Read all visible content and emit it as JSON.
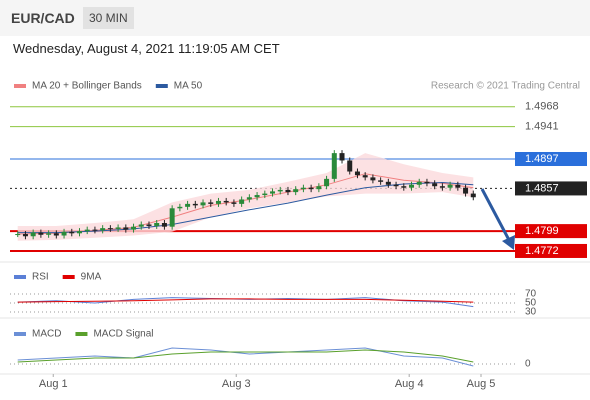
{
  "header": {
    "symbol": "EUR/CAD",
    "timeframe": "30 MIN",
    "datetime": "Wednesday, August 4, 2021 11:19:05 AM CET"
  },
  "attribution": "Research © 2021 Trading Central",
  "chart_data": [
    {
      "type": "candlestick",
      "up_color": "#2a8a3a",
      "down_color": "#222222",
      "values": [
        1.4795,
        1.4792,
        1.4797,
        1.4794,
        1.4796,
        1.4793,
        1.4798,
        1.4796,
        1.4799,
        1.4801,
        1.48,
        1.4803,
        1.4802,
        1.4804,
        1.4801,
        1.4805,
        1.4808,
        1.4806,
        1.481,
        1.4805,
        1.483,
        1.4832,
        1.4836,
        1.4834,
        1.4838,
        1.4836,
        1.484,
        1.4838,
        1.4836,
        1.4842,
        1.4845,
        1.4848,
        1.485,
        1.4853,
        1.4855,
        1.4852,
        1.4856,
        1.4858,
        1.4856,
        1.486,
        1.487,
        1.4905,
        1.4895,
        1.488,
        1.4875,
        1.4872,
        1.4868,
        1.4866,
        1.4862,
        1.486,
        1.4858,
        1.4862,
        1.4866,
        1.4864,
        1.486,
        1.4858,
        1.4862,
        1.4858,
        1.485,
        1.4845
      ],
      "series": [
        {
          "name": "MA 20 + Bollinger Bands",
          "color": "#f08080",
          "band_color": "#fbd9dc",
          "x": [
            0,
            5,
            10,
            15,
            20,
            25,
            30,
            35,
            40,
            45,
            50,
            55,
            59
          ],
          "values": [
            1.4795,
            1.4796,
            1.48,
            1.4804,
            1.4818,
            1.4834,
            1.4842,
            1.4852,
            1.4862,
            1.4877,
            1.4868,
            1.4864,
            1.4858
          ],
          "upper": [
            1.4806,
            1.4806,
            1.481,
            1.4815,
            1.4838,
            1.485,
            1.4855,
            1.4866,
            1.4878,
            1.4905,
            1.489,
            1.4878,
            1.4872
          ],
          "lower": [
            1.4786,
            1.4787,
            1.479,
            1.4793,
            1.4798,
            1.4818,
            1.483,
            1.4838,
            1.4846,
            1.485,
            1.485,
            1.4852,
            1.4845
          ]
        },
        {
          "name": "MA 50",
          "color": "#2c5aa0",
          "x": [
            0,
            5,
            10,
            15,
            20,
            25,
            30,
            35,
            40,
            45,
            50,
            55,
            59
          ],
          "values": [
            1.4797,
            1.4797,
            1.4799,
            1.4802,
            1.4808,
            1.4818,
            1.4828,
            1.4837,
            1.4848,
            1.4858,
            1.4863,
            1.4865,
            1.4862
          ]
        }
      ],
      "levels": [
        {
          "value": 1.4968,
          "color": "#8dc63f",
          "boxed": false
        },
        {
          "value": 1.4941,
          "color": "#8dc63f",
          "boxed": false
        },
        {
          "value": 1.4897,
          "color": "#2a6fdb",
          "boxed": true
        },
        {
          "value": 1.4857,
          "color": "#222222",
          "boxed": true,
          "dotted": true
        },
        {
          "value": 1.4799,
          "color": "#e00000",
          "boxed": true
        },
        {
          "value": 1.4772,
          "color": "#e00000",
          "boxed": true
        }
      ],
      "xlim": [
        -1,
        60
      ],
      "ylim": [
        1.4757,
        1.4984
      ],
      "xticks": [
        {
          "value": 4.6,
          "label": "Aug 1"
        },
        {
          "value": 28.3,
          "label": "Aug 3"
        },
        {
          "value": 50.7,
          "label": "Aug 4"
        },
        {
          "value": 60,
          "label": "Aug 5"
        }
      ]
    },
    {
      "type": "line",
      "ylim": [
        0,
        100
      ],
      "yticks": [
        70,
        50,
        30
      ],
      "series": [
        {
          "name": "RSI",
          "color": "#5b7fd6",
          "x": [
            0,
            5,
            10,
            15,
            20,
            25,
            30,
            35,
            40,
            45,
            50,
            55,
            59
          ],
          "values": [
            52,
            55,
            50,
            58,
            62,
            60,
            58,
            60,
            58,
            62,
            55,
            52,
            42
          ]
        },
        {
          "name": "9MA",
          "color": "#e00000",
          "x": [
            0,
            5,
            10,
            15,
            20,
            25,
            30,
            35,
            40,
            45,
            50,
            55,
            59
          ],
          "values": [
            52,
            53,
            54,
            55,
            57,
            59,
            59,
            58,
            58,
            58,
            56,
            54,
            52
          ]
        }
      ]
    },
    {
      "type": "line",
      "ylim": [
        -0.0004,
        0.0012
      ],
      "yticks": [
        0
      ],
      "series": [
        {
          "name": "MACD",
          "color": "#6b8fd6",
          "x": [
            0,
            5,
            10,
            15,
            20,
            25,
            30,
            35,
            40,
            45,
            50,
            55,
            59
          ],
          "values": [
            0.0002,
            0.0003,
            0.0004,
            0.0003,
            0.0008,
            0.0007,
            0.0005,
            0.0006,
            0.0007,
            0.0008,
            0.0004,
            0.0003,
            -0.0001
          ]
        },
        {
          "name": "MACD Signal",
          "color": "#5aa02c",
          "x": [
            0,
            5,
            10,
            15,
            20,
            25,
            30,
            35,
            40,
            45,
            50,
            55,
            59
          ],
          "values": [
            0.0001,
            0.0002,
            0.0003,
            0.0003,
            0.0005,
            0.0006,
            0.0006,
            0.0006,
            0.0006,
            0.0007,
            0.0006,
            0.0004,
            0.0001
          ]
        }
      ]
    }
  ]
}
